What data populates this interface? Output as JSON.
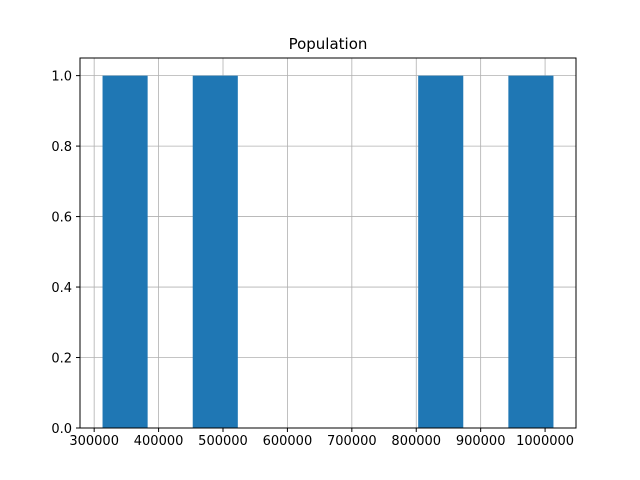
{
  "chart_data": {
    "type": "bar",
    "title": "Population",
    "xlabel": "",
    "ylabel": "",
    "bins": [
      {
        "start": 313000,
        "end": 383000,
        "count": 1
      },
      {
        "start": 383000,
        "end": 453000,
        "count": 0
      },
      {
        "start": 453000,
        "end": 523000,
        "count": 1
      },
      {
        "start": 523000,
        "end": 593000,
        "count": 0
      },
      {
        "start": 593000,
        "end": 663000,
        "count": 0
      },
      {
        "start": 663000,
        "end": 733000,
        "count": 0
      },
      {
        "start": 733000,
        "end": 803000,
        "count": 0
      },
      {
        "start": 803000,
        "end": 873000,
        "count": 1
      },
      {
        "start": 873000,
        "end": 943000,
        "count": 0
      },
      {
        "start": 943000,
        "end": 1013000,
        "count": 1
      }
    ],
    "xlim": [
      278000,
      1048000
    ],
    "ylim": [
      0,
      1.05
    ],
    "xticks": [
      300000,
      400000,
      500000,
      600000,
      700000,
      800000,
      900000,
      1000000
    ],
    "xtick_labels": [
      "300000",
      "400000",
      "500000",
      "600000",
      "700000",
      "800000",
      "900000",
      "1000000"
    ],
    "yticks": [
      0.0,
      0.2,
      0.4,
      0.6,
      0.8,
      1.0
    ],
    "ytick_labels": [
      "0.0",
      "0.2",
      "0.4",
      "0.6",
      "0.8",
      "1.0"
    ],
    "grid": true,
    "bar_color": "#1f77b4",
    "grid_color": "#b0b0b0"
  }
}
